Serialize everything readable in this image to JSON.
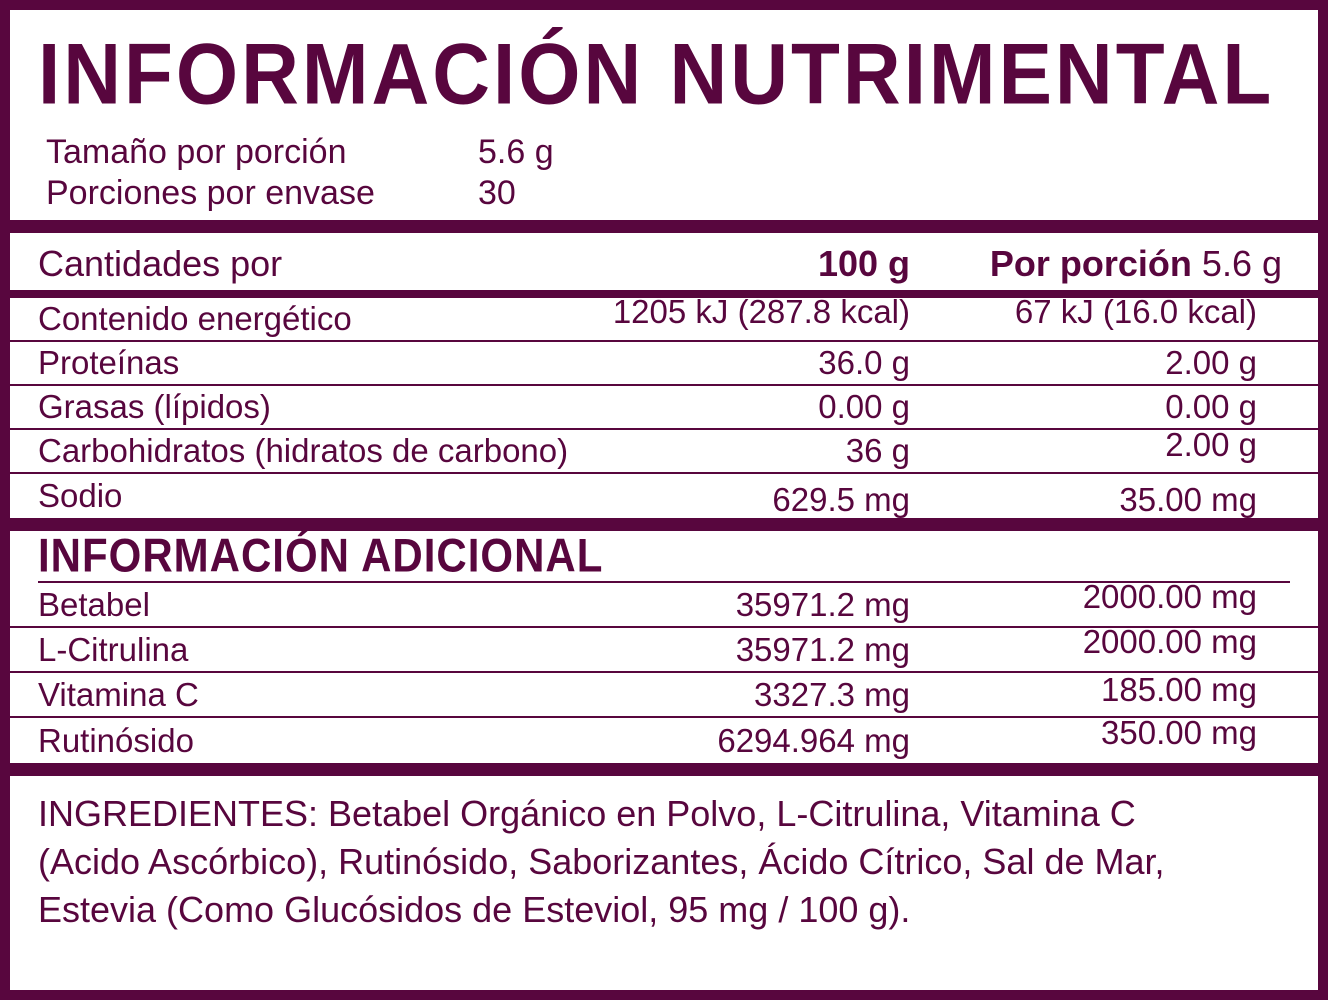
{
  "colors": {
    "plum": "#58063E",
    "background": "#FFFFFF"
  },
  "header": {
    "title": "INFORMACIÓN NUTRIMENTAL",
    "serving_rows": [
      {
        "label": "Tamaño por porción",
        "value": "5.6 g"
      },
      {
        "label": "Porciones por envase",
        "value": "30"
      }
    ]
  },
  "table": {
    "header": {
      "label": "Cantidades por",
      "col1": "100 g",
      "col2_bold": "Por porción",
      "col2_normal": "5.6 g"
    },
    "rows": [
      {
        "label": "Contenido energético",
        "col1": "1205 kJ (287.8 kcal)",
        "col2": "67 kJ (16.0 kcal)"
      },
      {
        "label": "Proteínas",
        "col1": "36.0 g",
        "col2": "2.00 g"
      },
      {
        "label": "Grasas (lípidos)",
        "col1": "0.00 g",
        "col2": "0.00 g"
      },
      {
        "label": "Carbohidratos (hidratos de carbono)",
        "col1": "36 g",
        "col2": "2.00 g"
      },
      {
        "label": "Sodio",
        "col1": "629.5 mg",
        "col2": "35.00 mg"
      }
    ]
  },
  "additional": {
    "title": "INFORMACIÓN ADICIONAL",
    "rows": [
      {
        "label": "Betabel",
        "col1": "35971.2 mg",
        "col2": "2000.00 mg"
      },
      {
        "label": "L-Citrulina",
        "col1": "35971.2 mg",
        "col2": "2000.00 mg"
      },
      {
        "label": "Vitamina C",
        "col1": "3327.3 mg",
        "col2": "185.00 mg"
      },
      {
        "label": "Rutinósido",
        "col1": "6294.964 mg",
        "col2": "350.00 mg"
      }
    ]
  },
  "ingredients": {
    "lines": [
      "INGREDIENTES: Betabel Orgánico en Polvo, L-Citrulina, Vitamina C",
      "(Acido Ascórbico), Rutinósido, Saborizantes, Ácido Cítrico, Sal de Mar,",
      "Estevia (Como Glucósidos de Esteviol, 95 mg / 100 g)."
    ]
  }
}
